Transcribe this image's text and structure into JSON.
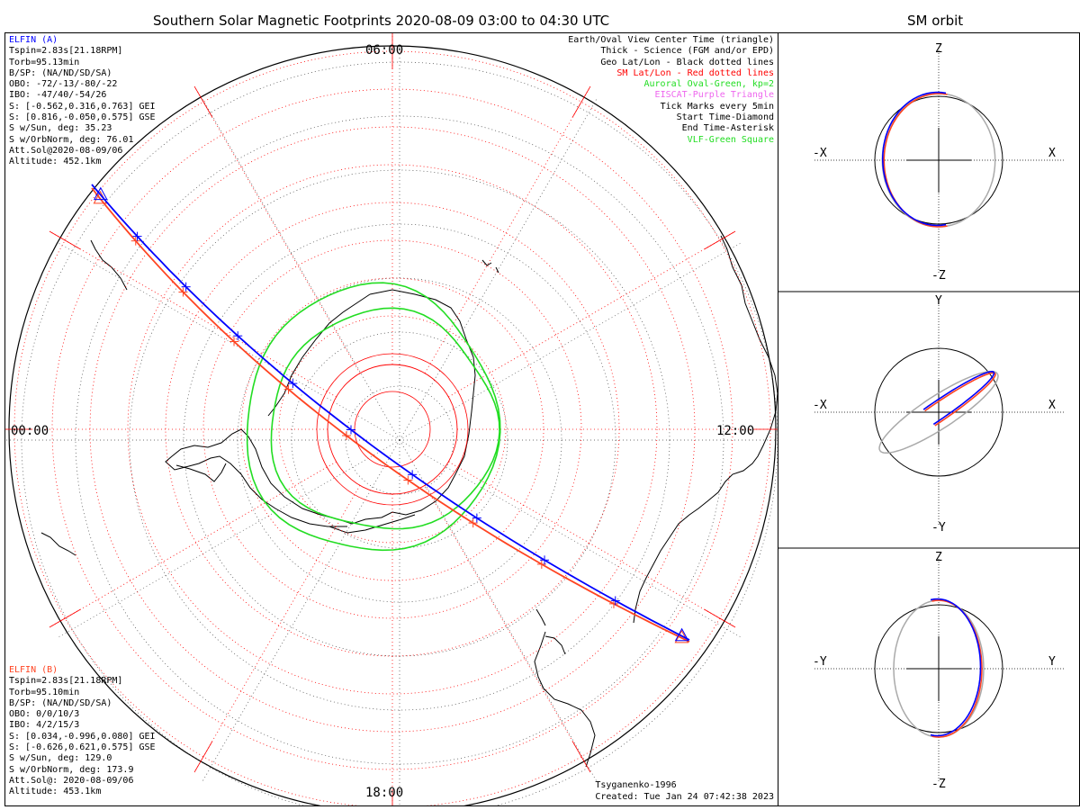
{
  "header": {
    "title": "Southern Solar Magnetic Footprints 2020-08-09 03:00 to 04:30 UTC",
    "orbit_title": "SM orbit"
  },
  "colors": {
    "elfin_a": "#0000ff",
    "elfin_b": "#ff4422",
    "aurora": "#22dd22",
    "sm_grid": "#ff0000",
    "eiscat": "#ee66ee",
    "orbit_gray": "#aaaaaa"
  },
  "elfin_a": {
    "lines": [
      "ELFIN (A)",
      "Tspin=2.83s[21.18RPM]",
      "Torb=95.13min",
      "B/SP: (NA/ND/SD/SA)",
      "OBO: -72/-13/-80/-22",
      "IBO: -47/40/-54/26",
      "S: [-0.562,0.316,0.763] GEI",
      "S: [0.816,-0.050,0.575] GSE",
      "S w/Sun, deg: 35.23",
      "S w/OrbNorm, deg: 76.01",
      "Att.Sol@2020-08-09/06",
      "Altitude: 452.1km"
    ]
  },
  "elfin_b": {
    "lines": [
      "ELFIN (B)",
      "Tspin=2.83s[21.18RPM]",
      "Torb=95.10min",
      "B/SP: (NA/ND/SD/SA)",
      "OBO: 0/0/10/3",
      "IBO: 4/2/15/3",
      "S: [0.034,-0.996,0.080] GEI",
      "S: [-0.626,0.621,0.575] GSE",
      "S w/Sun, deg: 129.0",
      "S w/OrbNorm, deg: 173.9",
      "Att.Sol@: 2020-08-09/06",
      "Altitude: 453.1km"
    ]
  },
  "legend": [
    {
      "text": "Earth/Oval View Center Time (triangle)",
      "color": "#000000"
    },
    {
      "text": "Thick - Science (FGM and/or EPD)",
      "color": "#000000"
    },
    {
      "text": "Geo Lat/Lon - Black dotted lines",
      "color": "#000000"
    },
    {
      "text": "SM Lat/Lon - Red dotted lines",
      "color": "#ff0000"
    },
    {
      "text": "Auroral Oval-Green, kp=2",
      "color": "#22dd22"
    },
    {
      "text": "EISCAT-Purple Triangle",
      "color": "#ee66ee"
    },
    {
      "text": "Tick Marks every 5min",
      "color": "#000000"
    },
    {
      "text": "Start Time-Diamond",
      "color": "#000000"
    },
    {
      "text": "End Time-Asterisk",
      "color": "#000000"
    },
    {
      "text": "VLF-Green Square",
      "color": "#22dd22"
    }
  ],
  "credits": {
    "model": "Tsyganenko-1996",
    "created": "Created: Tue Jan 24 07:42:38 2023"
  },
  "map_labels": {
    "top": "06:00",
    "bottom": "18:00",
    "left": "00:00",
    "right": "12:00"
  },
  "orbit_views": [
    {
      "top": "Z",
      "bottom": "-Z",
      "left": "-X",
      "right": "X"
    },
    {
      "top": "Y",
      "bottom": "-Y",
      "left": "-X",
      "right": "X"
    },
    {
      "top": "Z",
      "bottom": "-Z",
      "left": "-Y",
      "right": "Y"
    }
  ],
  "chart_data": {
    "type": "map",
    "projection": "polar, southern hemisphere, SM coordinates",
    "start_time": "2020-08-09 03:00 UTC",
    "end_time": "2020-08-09 04:30 UTC",
    "tick_interval_min": 5,
    "kp": 2,
    "series": [
      {
        "name": "ELFIN (A)",
        "color": "#0000ff"
      },
      {
        "name": "ELFIN (B)",
        "color": "#ff4422"
      }
    ]
  }
}
